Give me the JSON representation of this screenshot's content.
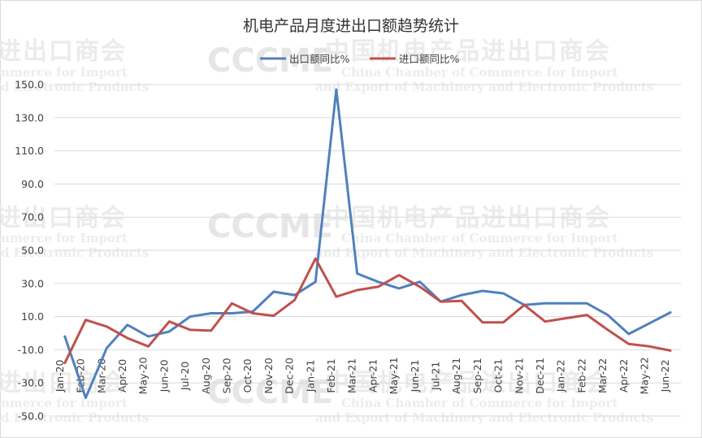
{
  "watermark": {
    "cn": "中国机电产品进出口商会",
    "cn_fragment": "进出口商会",
    "en_line1": "China Chamber of Commerce for Import",
    "en_line2": "and Export of Machinery and Electronic Products",
    "en_frag1": "mmerce for Import",
    "en_frag2": "nd Electronic Products",
    "logo": "CCCME"
  },
  "chart_data": {
    "type": "line",
    "title": "机电产品月度进出口额趋势统计",
    "legend_position": "top",
    "grid": true,
    "ylim": [
      -50,
      150
    ],
    "y_ticks": [
      150.0,
      130.0,
      110.0,
      90.0,
      70.0,
      50.0,
      30.0,
      10.0,
      -10.0,
      -30.0,
      -50.0
    ],
    "y_tick_labels": [
      "150.0",
      "130.0",
      "110.0",
      "90.0",
      "70.0",
      "50.0",
      "30.0",
      "10.0",
      "-10.0",
      "-30.0",
      "-50.0"
    ],
    "categories": [
      "Jan-20",
      "Feb-20",
      "Mar-20",
      "Apr-20",
      "May-20",
      "Jun-20",
      "Jul-20",
      "Aug-20",
      "Sep-20",
      "Oct-20",
      "Nov-20",
      "Dec-20",
      "Jan-21",
      "Feb-21",
      "Mar-21",
      "Apr-21",
      "May-21",
      "Jun-21",
      "Jul-21",
      "Aug-21",
      "Sep-21",
      "Oct-21",
      "Nov-21",
      "Dec-21",
      "Jan-22",
      "Feb-22",
      "Mar-22",
      "Apr-22",
      "May-22",
      "Jun-22"
    ],
    "series": [
      {
        "name": "出口额同比%",
        "color": "#4f81bd",
        "values": [
          -2,
          -39,
          -9,
          5,
          -2,
          1,
          10,
          12,
          12,
          13,
          25,
          23,
          31,
          147,
          36,
          31,
          27,
          31,
          19,
          23,
          25.5,
          24,
          17,
          18,
          18,
          18,
          11,
          -0.5,
          6,
          12.5
        ]
      },
      {
        "name": "进口额同比%",
        "color": "#c0504d",
        "values": [
          -18,
          8,
          4,
          -3,
          -8,
          7,
          2,
          1.5,
          18,
          12,
          10.5,
          20,
          45,
          22,
          26,
          28,
          35,
          28,
          19,
          19.5,
          6.5,
          6.5,
          17,
          7,
          9,
          11,
          2,
          -6.5,
          -8,
          -10.5
        ]
      }
    ]
  }
}
